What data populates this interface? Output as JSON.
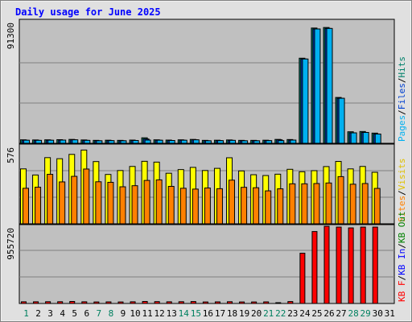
{
  "title": "Daily usage for June 2025",
  "colors": {
    "background": "#e0e0e0",
    "plot_bg": "#c0c0c0",
    "pages": "#00b0f0",
    "files": "#0040d0",
    "hits": "#00806a",
    "visits": "#ffff00",
    "sites": "#ff8000",
    "kb_in": "#0000ff",
    "kb_out": "#008000",
    "kb_f": "#ff0000",
    "title": "#0000ff",
    "weekend_label": "#008060",
    "weekday_label": "#000000"
  },
  "chart_data": [
    {
      "type": "bar",
      "panel": "hits-files-pages",
      "ymax_label": "91300",
      "ylim": [
        0,
        91300
      ],
      "axis_legend": [
        {
          "text": "Pages",
          "color": "#00b0f0"
        },
        {
          "text": "/",
          "color": "#000000"
        },
        {
          "text": "Files",
          "color": "#0040d0"
        },
        {
          "text": "/",
          "color": "#000000"
        },
        {
          "text": "Hits",
          "color": "#00806a"
        }
      ],
      "categories": [
        "1",
        "2",
        "3",
        "4",
        "5",
        "6",
        "7",
        "8",
        "9",
        "10",
        "11",
        "12",
        "13",
        "14",
        "15",
        "16",
        "17",
        "18",
        "19",
        "20",
        "21",
        "22",
        "23",
        "24",
        "25",
        "26",
        "27",
        "28",
        "29",
        "30",
        "31"
      ],
      "series": [
        {
          "name": "Hits",
          "values": [
            2600,
            2500,
            2600,
            2700,
            2900,
            2500,
            2200,
            2300,
            2200,
            2400,
            4100,
            2600,
            2400,
            2600,
            2900,
            2200,
            2300,
            2500,
            2200,
            2200,
            2300,
            2900,
            2800,
            63500,
            86000,
            86400,
            34200,
            8600,
            8800,
            7600,
            0
          ]
        },
        {
          "name": "Files",
          "values": [
            2300,
            2200,
            2300,
            2400,
            2600,
            2200,
            1900,
            2000,
            1900,
            2100,
            3200,
            2300,
            2100,
            2300,
            2600,
            1900,
            2000,
            2200,
            1900,
            1900,
            2000,
            2600,
            2400,
            62900,
            85300,
            85700,
            33600,
            7800,
            8100,
            6900,
            0
          ]
        },
        {
          "name": "Pages",
          "values": [
            2300,
            2200,
            2300,
            2400,
            2600,
            2200,
            1900,
            2000,
            1900,
            2100,
            2400,
            2300,
            2100,
            2300,
            2600,
            1900,
            2000,
            2200,
            1900,
            1900,
            2000,
            2000,
            2400,
            62900,
            85300,
            85700,
            33600,
            7800,
            8100,
            6900,
            0
          ]
        }
      ]
    },
    {
      "type": "bar",
      "panel": "visits-sites",
      "ymax_label": "576",
      "ylim": [
        0,
        576
      ],
      "axis_legend": [
        {
          "text": "Sites",
          "color": "#ff8000"
        },
        {
          "text": "/",
          "color": "#000000"
        },
        {
          "text": "Visits",
          "color": "#e0c000"
        }
      ],
      "categories": [
        "1",
        "2",
        "3",
        "4",
        "5",
        "6",
        "7",
        "8",
        "9",
        "10",
        "11",
        "12",
        "13",
        "14",
        "15",
        "16",
        "17",
        "18",
        "19",
        "20",
        "21",
        "22",
        "23",
        "24",
        "25",
        "26",
        "27",
        "28",
        "29",
        "30",
        "31"
      ],
      "series": [
        {
          "name": "Visits",
          "values": [
            405,
            360,
            488,
            480,
            512,
            544,
            459,
            364,
            393,
            423,
            461,
            455,
            373,
            400,
            416,
            393,
            409,
            487,
            390,
            362,
            356,
            366,
            402,
            384,
            392,
            422,
            460,
            405,
            423,
            380,
            0
          ]
        },
        {
          "name": "Sites",
          "values": [
            262,
            270,
            365,
            309,
            350,
            404,
            310,
            306,
            273,
            281,
            320,
            324,
            276,
            262,
            256,
            264,
            259,
            322,
            269,
            266,
            243,
            258,
            295,
            295,
            297,
            301,
            348,
            292,
            297,
            261,
            0
          ]
        }
      ]
    },
    {
      "type": "bar",
      "panel": "kbytes",
      "ymax_label": "955720",
      "ylim": [
        0,
        955720
      ],
      "axis_legend": [
        {
          "text": "KB F",
          "color": "#ff0000"
        },
        {
          "text": "/",
          "color": "#000000"
        },
        {
          "text": "KB In",
          "color": "#0000ff"
        },
        {
          "text": "/",
          "color": "#000000"
        },
        {
          "text": "KB Out",
          "color": "#008000"
        }
      ],
      "categories": [
        "1",
        "2",
        "3",
        "4",
        "5",
        "6",
        "7",
        "8",
        "9",
        "10",
        "11",
        "12",
        "13",
        "14",
        "15",
        "16",
        "17",
        "18",
        "19",
        "20",
        "21",
        "22",
        "23",
        "24",
        "25",
        "26",
        "27",
        "28",
        "29",
        "30",
        "31"
      ],
      "series": [
        {
          "name": "KB F",
          "values": [
            21000,
            21000,
            22000,
            22000,
            25000,
            21000,
            19000,
            20000,
            19000,
            21000,
            25000,
            23000,
            21000,
            22000,
            24000,
            19000,
            20000,
            22000,
            19000,
            19000,
            20000,
            10000,
            24000,
            622000,
            890000,
            955000,
            945000,
            935000,
            945000,
            945000,
            0
          ]
        }
      ]
    }
  ],
  "x_labels": {
    "days": [
      "1",
      "2",
      "3",
      "4",
      "5",
      "6",
      "7",
      "8",
      "9",
      "10",
      "11",
      "12",
      "13",
      "14",
      "15",
      "16",
      "17",
      "18",
      "19",
      "20",
      "21",
      "22",
      "23",
      "24",
      "25",
      "26",
      "27",
      "28",
      "29",
      "30",
      "31"
    ],
    "weekend_days": [
      1,
      7,
      8,
      14,
      15,
      21,
      22,
      28,
      29
    ]
  }
}
